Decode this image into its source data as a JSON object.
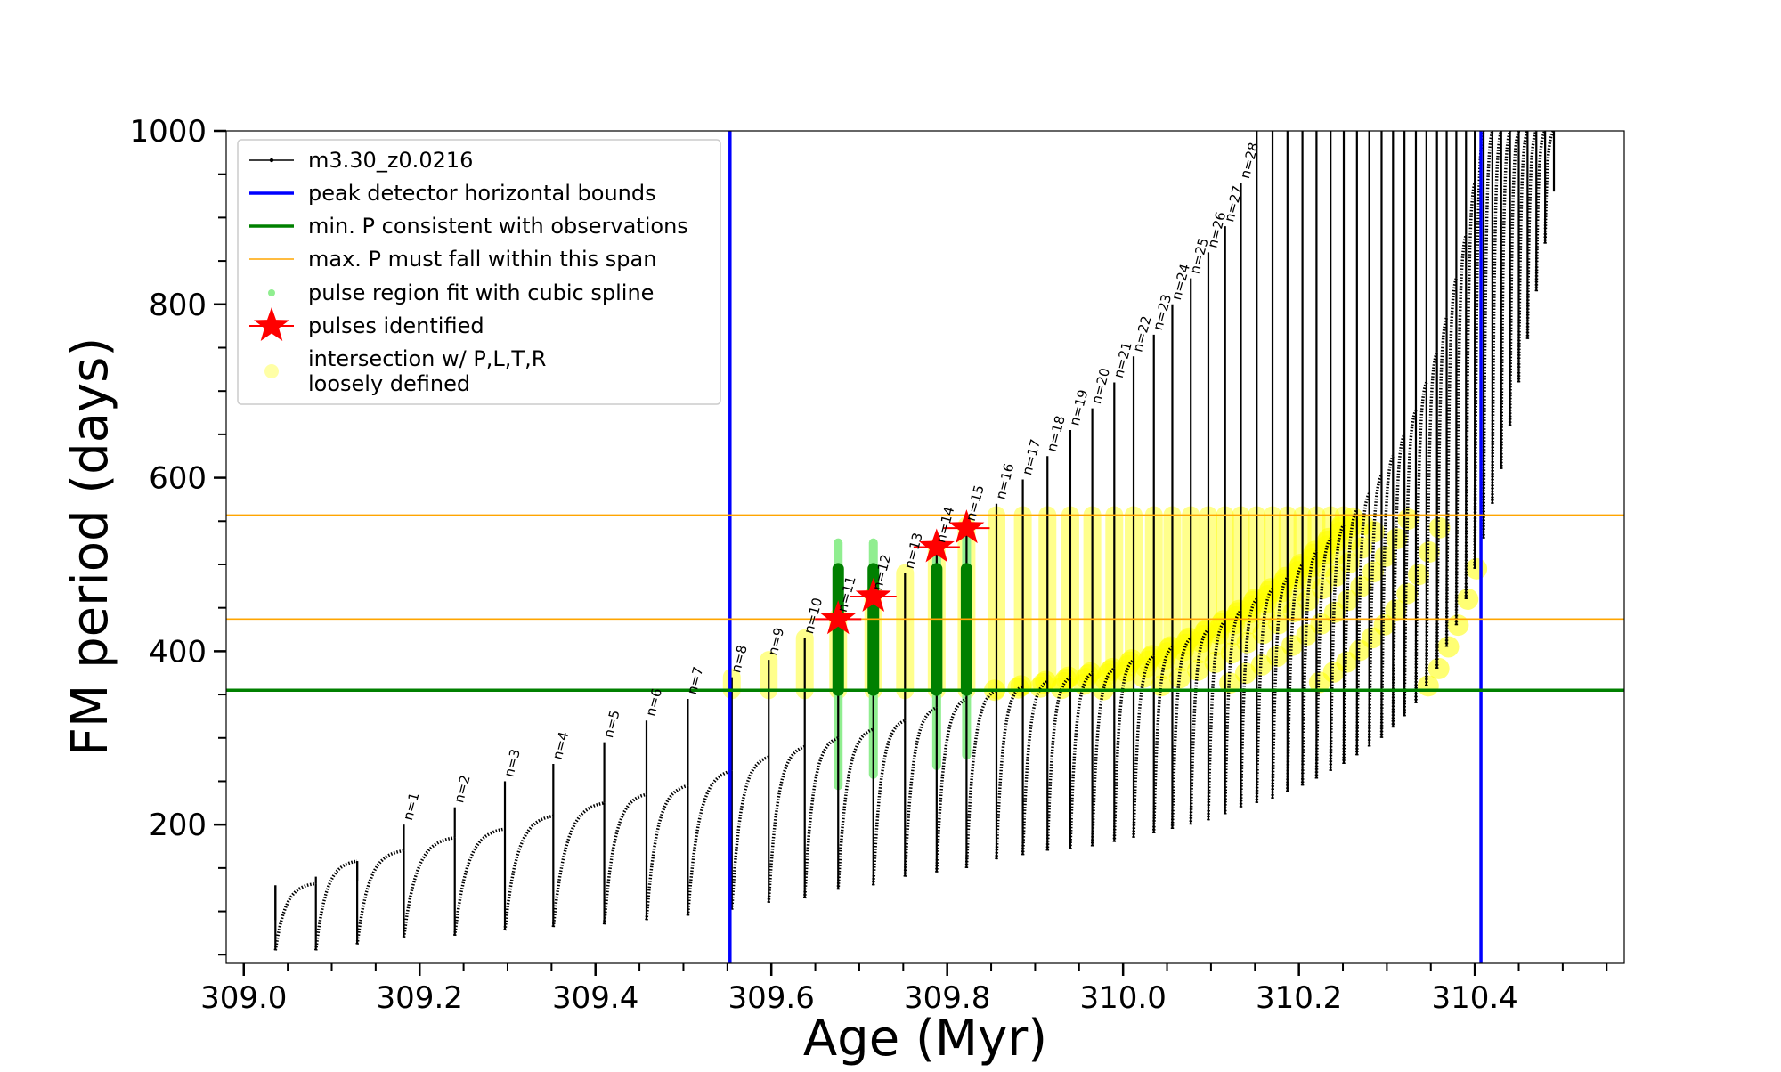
{
  "chart_data": {
    "type": "line",
    "xlabel": "Age (Myr)",
    "ylabel": "FM period (days)",
    "xlim": [
      308.98,
      310.57
    ],
    "ylim": [
      40,
      1000
    ],
    "x_ticks": [
      309.0,
      309.2,
      309.4,
      309.6,
      309.8,
      310.0,
      310.2,
      310.4
    ],
    "x_tick_labels": [
      "309.0",
      "309.2",
      "309.4",
      "309.6",
      "309.8",
      "310.0",
      "310.2",
      "310.4"
    ],
    "y_ticks": [
      200,
      400,
      600,
      800,
      1000
    ],
    "y_tick_labels": [
      "200",
      "400",
      "600",
      "800",
      "1000"
    ],
    "grid": false,
    "legend_position": "top-left",
    "legend": [
      {
        "label": "m3.30_z0.0216",
        "marker": "line-dot",
        "color": "#000000"
      },
      {
        "label": "peak detector horizontal bounds",
        "marker": "line",
        "color": "#0000ff"
      },
      {
        "label": "min. P consistent with observations",
        "marker": "line",
        "color": "#008000"
      },
      {
        "label": "max. P must fall within this span",
        "marker": "thin-line",
        "color": "#ffa500"
      },
      {
        "label": "pulse region fit with cubic spline",
        "marker": "dot",
        "color": "#90ee90"
      },
      {
        "label": "pulses identified",
        "marker": "star",
        "color": "#ff0000"
      },
      {
        "label": "intersection w/ P,L,T,R",
        "label2": "loosely defined",
        "marker": "circle",
        "color": "#ffff00"
      }
    ],
    "colors": {
      "track": "#000000",
      "bounds": "#0000ff",
      "min_p": "#008000",
      "max_p": "#ffa500",
      "spline": "#90ee90",
      "pulse_fit": "#008000",
      "star": "#ff0000",
      "intersection": "#ffff00"
    },
    "vertical_bounds": [
      309.553,
      310.407
    ],
    "min_p_line": 355,
    "max_p_span": [
      437,
      557
    ],
    "series_name": "m3.30_z0.0216",
    "pulses": [
      {
        "n": 0,
        "age": 309.036,
        "drop": 55,
        "rise": 130,
        "spike": 90
      },
      {
        "n": 0,
        "age": 309.082,
        "drop": 55,
        "rise": 132,
        "spike": 140
      },
      {
        "n": 0,
        "age": 309.129,
        "drop": 62,
        "rise": 158,
        "spike": 135
      },
      {
        "n": 1,
        "age": 309.182,
        "drop": 70,
        "rise": 170,
        "spike": 200
      },
      {
        "n": 2,
        "age": 309.24,
        "drop": 72,
        "rise": 185,
        "spike": 220
      },
      {
        "n": 3,
        "age": 309.297,
        "drop": 78,
        "rise": 195,
        "spike": 250
      },
      {
        "n": 4,
        "age": 309.352,
        "drop": 82,
        "rise": 210,
        "spike": 270
      },
      {
        "n": 5,
        "age": 309.41,
        "drop": 85,
        "rise": 225,
        "spike": 295
      },
      {
        "n": 6,
        "age": 309.458,
        "drop": 90,
        "rise": 235,
        "spike": 320
      },
      {
        "n": 7,
        "age": 309.505,
        "drop": 95,
        "rise": 245,
        "spike": 345
      },
      {
        "n": 8,
        "age": 309.555,
        "drop": 102,
        "rise": 262,
        "spike": 370
      },
      {
        "n": 9,
        "age": 309.597,
        "drop": 110,
        "rise": 278,
        "spike": 390
      },
      {
        "n": 10,
        "age": 309.638,
        "drop": 115,
        "rise": 290,
        "spike": 415
      },
      {
        "n": 11,
        "age": 309.676,
        "drop": 125,
        "rise": 300,
        "spike": 440
      },
      {
        "n": 12,
        "age": 309.716,
        "drop": 130,
        "rise": 310,
        "spike": 465
      },
      {
        "n": 13,
        "age": 309.752,
        "drop": 140,
        "rise": 320,
        "spike": 490
      },
      {
        "n": 14,
        "age": 309.788,
        "drop": 145,
        "rise": 335,
        "spike": 520
      },
      {
        "n": 15,
        "age": 309.822,
        "drop": 150,
        "rise": 345,
        "spike": 545
      },
      {
        "n": 16,
        "age": 309.856,
        "drop": 160,
        "rise": 355,
        "spike": 570
      },
      {
        "n": 17,
        "age": 309.886,
        "drop": 165,
        "rise": 360,
        "spike": 598
      },
      {
        "n": 18,
        "age": 309.914,
        "drop": 170,
        "rise": 365,
        "spike": 625
      },
      {
        "n": 19,
        "age": 309.94,
        "drop": 172,
        "rise": 370,
        "spike": 655
      },
      {
        "n": 20,
        "age": 309.965,
        "drop": 175,
        "rise": 375,
        "spike": 680
      },
      {
        "n": 21,
        "age": 309.99,
        "drop": 180,
        "rise": 380,
        "spike": 710
      },
      {
        "n": 22,
        "age": 310.012,
        "drop": 185,
        "rise": 390,
        "spike": 740
      },
      {
        "n": 23,
        "age": 310.035,
        "drop": 190,
        "rise": 395,
        "spike": 765
      },
      {
        "n": 24,
        "age": 310.056,
        "drop": 195,
        "rise": 405,
        "spike": 800
      },
      {
        "n": 25,
        "age": 310.077,
        "drop": 200,
        "rise": 415,
        "spike": 830
      },
      {
        "n": 26,
        "age": 310.097,
        "drop": 205,
        "rise": 425,
        "spike": 860
      },
      {
        "n": 27,
        "age": 310.116,
        "drop": 212,
        "rise": 435,
        "spike": 890
      },
      {
        "n": 28,
        "age": 310.134,
        "drop": 220,
        "rise": 447,
        "spike": 940
      },
      {
        "n": 0,
        "age": 310.152,
        "drop": 225,
        "rise": 460,
        "spike": 1000
      },
      {
        "n": 0,
        "age": 310.17,
        "drop": 230,
        "rise": 472,
        "spike": 1000
      },
      {
        "n": 0,
        "age": 310.187,
        "drop": 238,
        "rise": 485,
        "spike": 1000
      },
      {
        "n": 0,
        "age": 310.204,
        "drop": 245,
        "rise": 500,
        "spike": 1000
      },
      {
        "n": 0,
        "age": 310.22,
        "drop": 253,
        "rise": 515,
        "spike": 1000
      },
      {
        "n": 0,
        "age": 310.236,
        "drop": 262,
        "rise": 530,
        "spike": 1000
      },
      {
        "n": 0,
        "age": 310.251,
        "drop": 270,
        "rise": 546,
        "spike": 1000
      },
      {
        "n": 0,
        "age": 310.266,
        "drop": 280,
        "rise": 563,
        "spike": 1000
      },
      {
        "n": 0,
        "age": 310.28,
        "drop": 290,
        "rise": 582,
        "spike": 1000
      },
      {
        "n": 0,
        "age": 310.294,
        "drop": 300,
        "rise": 603,
        "spike": 1000
      },
      {
        "n": 0,
        "age": 310.307,
        "drop": 312,
        "rise": 625,
        "spike": 1000
      },
      {
        "n": 0,
        "age": 310.32,
        "drop": 325,
        "rise": 650,
        "spike": 1000
      },
      {
        "n": 0,
        "age": 310.333,
        "drop": 340,
        "rise": 678,
        "spike": 1000
      },
      {
        "n": 0,
        "age": 310.345,
        "drop": 360,
        "rise": 710,
        "spike": 1000
      },
      {
        "n": 0,
        "age": 310.357,
        "drop": 380,
        "rise": 745,
        "spike": 1000
      },
      {
        "n": 0,
        "age": 310.368,
        "drop": 405,
        "rise": 785,
        "spike": 1000
      },
      {
        "n": 0,
        "age": 310.379,
        "drop": 430,
        "rise": 830,
        "spike": 1000
      },
      {
        "n": 0,
        "age": 310.39,
        "drop": 460,
        "rise": 880,
        "spike": 1000
      },
      {
        "n": 0,
        "age": 310.4,
        "drop": 495,
        "rise": 940,
        "spike": 1000
      },
      {
        "n": 0,
        "age": 310.41,
        "drop": 530,
        "rise": 1000,
        "spike": 1000
      },
      {
        "n": 0,
        "age": 310.42,
        "drop": 570,
        "rise": 1000,
        "spike": 1000
      },
      {
        "n": 0,
        "age": 310.43,
        "drop": 610,
        "rise": 1000,
        "spike": 1000
      },
      {
        "n": 0,
        "age": 310.44,
        "drop": 660,
        "rise": 1000,
        "spike": 1000
      },
      {
        "n": 0,
        "age": 310.45,
        "drop": 710,
        "rise": 1000,
        "spike": 1000
      },
      {
        "n": 0,
        "age": 310.46,
        "drop": 760,
        "rise": 1000,
        "spike": 1000
      },
      {
        "n": 0,
        "age": 310.47,
        "drop": 815,
        "rise": 1000,
        "spike": 1000
      },
      {
        "n": 0,
        "age": 310.48,
        "drop": 870,
        "rise": 1000,
        "spike": 1000
      },
      {
        "n": 0,
        "age": 310.49,
        "drop": 930,
        "rise": 1000,
        "spike": 1000
      }
    ],
    "pulse_labels": [
      {
        "age": 309.182,
        "y": 200,
        "text": "n=1"
      },
      {
        "age": 309.24,
        "y": 220,
        "text": "n=2"
      },
      {
        "age": 309.297,
        "y": 250,
        "text": "n=3"
      },
      {
        "age": 309.352,
        "y": 270,
        "text": "n=4"
      },
      {
        "age": 309.41,
        "y": 295,
        "text": "n=5"
      },
      {
        "age": 309.458,
        "y": 320,
        "text": "n=6"
      },
      {
        "age": 309.505,
        "y": 345,
        "text": "n=7"
      },
      {
        "age": 309.555,
        "y": 370,
        "text": "n=8"
      },
      {
        "age": 309.597,
        "y": 390,
        "text": "n=9"
      },
      {
        "age": 309.638,
        "y": 415,
        "text": "n=10"
      },
      {
        "age": 309.676,
        "y": 440,
        "text": "n=11"
      },
      {
        "age": 309.716,
        "y": 465,
        "text": "n=12"
      },
      {
        "age": 309.752,
        "y": 490,
        "text": "n=13"
      },
      {
        "age": 309.788,
        "y": 520,
        "text": "n=14"
      },
      {
        "age": 309.822,
        "y": 545,
        "text": "n=15"
      },
      {
        "age": 309.856,
        "y": 570,
        "text": "n=16"
      },
      {
        "age": 309.886,
        "y": 598,
        "text": "n=17"
      },
      {
        "age": 309.914,
        "y": 625,
        "text": "n=18"
      },
      {
        "age": 309.94,
        "y": 655,
        "text": "n=19"
      },
      {
        "age": 309.965,
        "y": 680,
        "text": "n=20"
      },
      {
        "age": 309.99,
        "y": 710,
        "text": "n=21"
      },
      {
        "age": 310.012,
        "y": 740,
        "text": "n=22"
      },
      {
        "age": 310.035,
        "y": 765,
        "text": "n=23"
      },
      {
        "age": 310.056,
        "y": 800,
        "text": "n=24"
      },
      {
        "age": 310.077,
        "y": 830,
        "text": "n=25"
      },
      {
        "age": 310.097,
        "y": 860,
        "text": "n=26"
      },
      {
        "age": 310.116,
        "y": 890,
        "text": "n=27"
      },
      {
        "age": 310.134,
        "y": 940,
        "text": "n=28"
      }
    ],
    "spline_pulses": [
      {
        "age": 309.676,
        "ymin": 245,
        "ymax": 525
      },
      {
        "age": 309.716,
        "ymin": 258,
        "ymax": 525
      },
      {
        "age": 309.788,
        "ymin": 268,
        "ymax": 515
      },
      {
        "age": 309.822,
        "ymin": 280,
        "ymax": 540
      }
    ],
    "fit_pulses": [
      {
        "age": 309.676,
        "ymin": 355,
        "ymax": 495
      },
      {
        "age": 309.716,
        "ymin": 355,
        "ymax": 495
      },
      {
        "age": 309.788,
        "ymin": 355,
        "ymax": 495
      },
      {
        "age": 309.822,
        "ymin": 355,
        "ymax": 495
      }
    ],
    "stars": [
      {
        "age": 309.676,
        "period": 437
      },
      {
        "age": 309.716,
        "period": 463
      },
      {
        "age": 309.788,
        "period": 520
      },
      {
        "age": 309.822,
        "period": 542
      }
    ]
  }
}
